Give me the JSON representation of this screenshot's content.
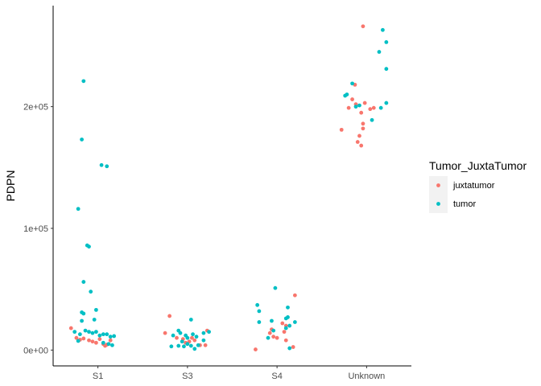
{
  "chart_data": {
    "type": "scatter",
    "subtype": "jitter-strip",
    "title": "",
    "xlabel": "",
    "ylabel": "PDPN",
    "categories": [
      "S1",
      "S3",
      "S4",
      "Unknown"
    ],
    "ylim": [
      -13000,
      283000
    ],
    "y_ticks": [
      0,
      100000,
      200000
    ],
    "y_tick_labels": [
      "0e+00",
      "1e+05",
      "2e+05"
    ],
    "grid": false,
    "legend": {
      "title": "Tumor_JuxtaTumor",
      "position": "right",
      "entries": [
        {
          "name": "juxtatumor",
          "color": "#F8766D"
        },
        {
          "name": "tumor",
          "color": "#00BFC4"
        }
      ]
    },
    "series": [
      {
        "name": "juxtatumor",
        "color": "#F8766D",
        "points": [
          {
            "x": "S1",
            "jitter": -0.3,
            "y": 18000
          },
          {
            "x": "S1",
            "jitter": -0.24,
            "y": 10000
          },
          {
            "x": "S1",
            "jitter": -0.16,
            "y": 9500
          },
          {
            "x": "S1",
            "jitter": -0.1,
            "y": 8000
          },
          {
            "x": "S1",
            "jitter": -0.06,
            "y": 7000
          },
          {
            "x": "S1",
            "jitter": -0.02,
            "y": 6000
          },
          {
            "x": "S1",
            "jitter": 0.02,
            "y": 9000
          },
          {
            "x": "S1",
            "jitter": 0.06,
            "y": 5000
          },
          {
            "x": "S1",
            "jitter": 0.1,
            "y": 4500
          },
          {
            "x": "S1",
            "jitter": 0.14,
            "y": 8000
          },
          {
            "x": "S1",
            "jitter": -0.2,
            "y": 8500
          },
          {
            "x": "S1",
            "jitter": 0.08,
            "y": 3500
          },
          {
            "x": "S3",
            "jitter": -0.2,
            "y": 28000
          },
          {
            "x": "S3",
            "jitter": -0.25,
            "y": 14000
          },
          {
            "x": "S3",
            "jitter": -0.12,
            "y": 10000
          },
          {
            "x": "S3",
            "jitter": -0.05,
            "y": 9000
          },
          {
            "x": "S3",
            "jitter": -0.02,
            "y": 6000
          },
          {
            "x": "S3",
            "jitter": 0.02,
            "y": 7000
          },
          {
            "x": "S3",
            "jitter": 0.05,
            "y": 10000
          },
          {
            "x": "S3",
            "jitter": 0.08,
            "y": 8000
          },
          {
            "x": "S3",
            "jitter": 0.14,
            "y": 4000
          },
          {
            "x": "S3",
            "jitter": 0.2,
            "y": 4000
          },
          {
            "x": "S3",
            "jitter": 0.22,
            "y": 16000
          },
          {
            "x": "S4",
            "jitter": 0.2,
            "y": 45000
          },
          {
            "x": "S4",
            "jitter": 0.06,
            "y": 22000
          },
          {
            "x": "S4",
            "jitter": 0.1,
            "y": 20000
          },
          {
            "x": "S4",
            "jitter": 0.08,
            "y": 15000
          },
          {
            "x": "S4",
            "jitter": -0.06,
            "y": 17000
          },
          {
            "x": "S4",
            "jitter": -0.08,
            "y": 14000
          },
          {
            "x": "S4",
            "jitter": -0.04,
            "y": 11000
          },
          {
            "x": "S4",
            "jitter": 0.0,
            "y": 10000
          },
          {
            "x": "S4",
            "jitter": 0.1,
            "y": 8000
          },
          {
            "x": "S4",
            "jitter": -0.24,
            "y": 500
          },
          {
            "x": "S4",
            "jitter": 0.18,
            "y": 2500
          },
          {
            "x": "Unknown",
            "jitter": -0.04,
            "y": 266000
          },
          {
            "x": "Unknown",
            "jitter": -0.13,
            "y": 218000
          },
          {
            "x": "Unknown",
            "jitter": -0.16,
            "y": 206000
          },
          {
            "x": "Unknown",
            "jitter": -0.12,
            "y": 202000
          },
          {
            "x": "Unknown",
            "jitter": -0.2,
            "y": 199000
          },
          {
            "x": "Unknown",
            "jitter": -0.02,
            "y": 203000
          },
          {
            "x": "Unknown",
            "jitter": 0.08,
            "y": 199000
          },
          {
            "x": "Unknown",
            "jitter": 0.04,
            "y": 198000
          },
          {
            "x": "Unknown",
            "jitter": -0.06,
            "y": 195000
          },
          {
            "x": "Unknown",
            "jitter": -0.04,
            "y": 186000
          },
          {
            "x": "Unknown",
            "jitter": -0.04,
            "y": 182000
          },
          {
            "x": "Unknown",
            "jitter": -0.28,
            "y": 181000
          },
          {
            "x": "Unknown",
            "jitter": -0.08,
            "y": 176000
          },
          {
            "x": "Unknown",
            "jitter": -0.1,
            "y": 171000
          },
          {
            "x": "Unknown",
            "jitter": -0.06,
            "y": 168000
          }
        ]
      },
      {
        "name": "tumor",
        "color": "#00BFC4",
        "points": [
          {
            "x": "S1",
            "jitter": -0.16,
            "y": 221000
          },
          {
            "x": "S1",
            "jitter": -0.18,
            "y": 173000
          },
          {
            "x": "S1",
            "jitter": 0.04,
            "y": 152000
          },
          {
            "x": "S1",
            "jitter": 0.1,
            "y": 151000
          },
          {
            "x": "S1",
            "jitter": -0.22,
            "y": 116000
          },
          {
            "x": "S1",
            "jitter": -0.12,
            "y": 86000
          },
          {
            "x": "S1",
            "jitter": -0.1,
            "y": 85000
          },
          {
            "x": "S1",
            "jitter": -0.16,
            "y": 56000
          },
          {
            "x": "S1",
            "jitter": -0.08,
            "y": 48000
          },
          {
            "x": "S1",
            "jitter": -0.16,
            "y": 30000
          },
          {
            "x": "S1",
            "jitter": -0.18,
            "y": 31000
          },
          {
            "x": "S1",
            "jitter": -0.02,
            "y": 33000
          },
          {
            "x": "S1",
            "jitter": -0.18,
            "y": 24000
          },
          {
            "x": "S1",
            "jitter": -0.04,
            "y": 25000
          },
          {
            "x": "S1",
            "jitter": -0.26,
            "y": 15000
          },
          {
            "x": "S1",
            "jitter": -0.2,
            "y": 13000
          },
          {
            "x": "S1",
            "jitter": -0.14,
            "y": 16000
          },
          {
            "x": "S1",
            "jitter": -0.1,
            "y": 15000
          },
          {
            "x": "S1",
            "jitter": -0.06,
            "y": 14000
          },
          {
            "x": "S1",
            "jitter": -0.02,
            "y": 15000
          },
          {
            "x": "S1",
            "jitter": 0.02,
            "y": 12000
          },
          {
            "x": "S1",
            "jitter": 0.06,
            "y": 13000
          },
          {
            "x": "S1",
            "jitter": 0.1,
            "y": 13000
          },
          {
            "x": "S1",
            "jitter": 0.14,
            "y": 11000
          },
          {
            "x": "S1",
            "jitter": 0.18,
            "y": 11500
          },
          {
            "x": "S1",
            "jitter": -0.22,
            "y": 7500
          },
          {
            "x": "S1",
            "jitter": 0.12,
            "y": 5000
          },
          {
            "x": "S1",
            "jitter": 0.16,
            "y": 4000
          },
          {
            "x": "S1",
            "jitter": 0.06,
            "y": 6000
          },
          {
            "x": "S3",
            "jitter": 0.04,
            "y": 25000
          },
          {
            "x": "S3",
            "jitter": -0.1,
            "y": 16000
          },
          {
            "x": "S3",
            "jitter": -0.16,
            "y": 12000
          },
          {
            "x": "S3",
            "jitter": -0.08,
            "y": 14000
          },
          {
            "x": "S3",
            "jitter": -0.02,
            "y": 12000
          },
          {
            "x": "S3",
            "jitter": 0.0,
            "y": 10000
          },
          {
            "x": "S3",
            "jitter": 0.06,
            "y": 13000
          },
          {
            "x": "S3",
            "jitter": 0.1,
            "y": 11000
          },
          {
            "x": "S3",
            "jitter": 0.18,
            "y": 14000
          },
          {
            "x": "S3",
            "jitter": 0.24,
            "y": 15000
          },
          {
            "x": "S3",
            "jitter": -0.06,
            "y": 7000
          },
          {
            "x": "S3",
            "jitter": 0.0,
            "y": 5000
          },
          {
            "x": "S3",
            "jitter": 0.04,
            "y": 3500
          },
          {
            "x": "S3",
            "jitter": -0.18,
            "y": 3000
          },
          {
            "x": "S3",
            "jitter": -0.1,
            "y": 3500
          },
          {
            "x": "S3",
            "jitter": -0.04,
            "y": 3000
          },
          {
            "x": "S3",
            "jitter": 0.08,
            "y": 1000
          },
          {
            "x": "S3",
            "jitter": 0.12,
            "y": 4000
          },
          {
            "x": "S3",
            "jitter": 0.18,
            "y": 8000
          },
          {
            "x": "S4",
            "jitter": -0.02,
            "y": 51000
          },
          {
            "x": "S4",
            "jitter": -0.22,
            "y": 37000
          },
          {
            "x": "S4",
            "jitter": 0.12,
            "y": 35000
          },
          {
            "x": "S4",
            "jitter": -0.2,
            "y": 32000
          },
          {
            "x": "S4",
            "jitter": 0.12,
            "y": 27000
          },
          {
            "x": "S4",
            "jitter": 0.1,
            "y": 26000
          },
          {
            "x": "S4",
            "jitter": -0.06,
            "y": 24000
          },
          {
            "x": "S4",
            "jitter": -0.2,
            "y": 23000
          },
          {
            "x": "S4",
            "jitter": 0.2,
            "y": 23000
          },
          {
            "x": "S4",
            "jitter": 0.14,
            "y": 20000
          },
          {
            "x": "S4",
            "jitter": 0.1,
            "y": 18000
          },
          {
            "x": "S4",
            "jitter": -0.04,
            "y": 16000
          },
          {
            "x": "S4",
            "jitter": -0.1,
            "y": 10000
          },
          {
            "x": "S4",
            "jitter": 0.14,
            "y": 1500
          },
          {
            "x": "Unknown",
            "jitter": 0.18,
            "y": 263000
          },
          {
            "x": "Unknown",
            "jitter": 0.22,
            "y": 253000
          },
          {
            "x": "Unknown",
            "jitter": 0.14,
            "y": 245000
          },
          {
            "x": "Unknown",
            "jitter": 0.22,
            "y": 231000
          },
          {
            "x": "Unknown",
            "jitter": -0.16,
            "y": 219000
          },
          {
            "x": "Unknown",
            "jitter": -0.22,
            "y": 210000
          },
          {
            "x": "Unknown",
            "jitter": -0.24,
            "y": 209000
          },
          {
            "x": "Unknown",
            "jitter": 0.22,
            "y": 203000
          },
          {
            "x": "Unknown",
            "jitter": -0.08,
            "y": 201000
          },
          {
            "x": "Unknown",
            "jitter": -0.12,
            "y": 200000
          },
          {
            "x": "Unknown",
            "jitter": 0.16,
            "y": 199000
          },
          {
            "x": "Unknown",
            "jitter": 0.06,
            "y": 189000
          }
        ]
      }
    ]
  }
}
